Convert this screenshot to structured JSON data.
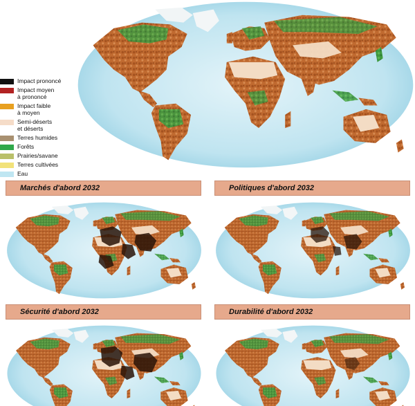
{
  "legend": {
    "items": [
      {
        "label": "Impact prononcé",
        "color": "#111111"
      },
      {
        "label": "Impact moyen\nà prononcé",
        "color": "#b22222"
      },
      {
        "label": "Impact faible\nà moyen",
        "color": "#e8a020"
      },
      {
        "label": "Semi-déserts\net déserts",
        "color": "#f5dcc8"
      },
      {
        "label": "Terres humides",
        "color": "#a89070"
      },
      {
        "label": "Forêts",
        "color": "#2fa84a"
      },
      {
        "label": "Prairies/savane",
        "color": "#b9c06a"
      },
      {
        "label": "Terres cultivées",
        "color": "#f2e27a"
      },
      {
        "label": "Eau",
        "color": "#bfe6f2"
      }
    ]
  },
  "scenarios": [
    {
      "title": "Marchés d'abord 2032"
    },
    {
      "title": "Politiques d'abord 2032"
    },
    {
      "title": "Sécurité d'abord 2032"
    },
    {
      "title": "Durabilité d'abord 2032"
    }
  ],
  "colors": {
    "ocean_center": "#dff2f8",
    "ocean_edge": "#9fd3e6",
    "land_base": "#b5622b",
    "land_light": "#d9905a",
    "desert": "#f3dcc4",
    "forest": "#4aa047",
    "ice": "#f4f7f8",
    "impact_dark": "#2a1408",
    "band": "#e6a98c"
  }
}
